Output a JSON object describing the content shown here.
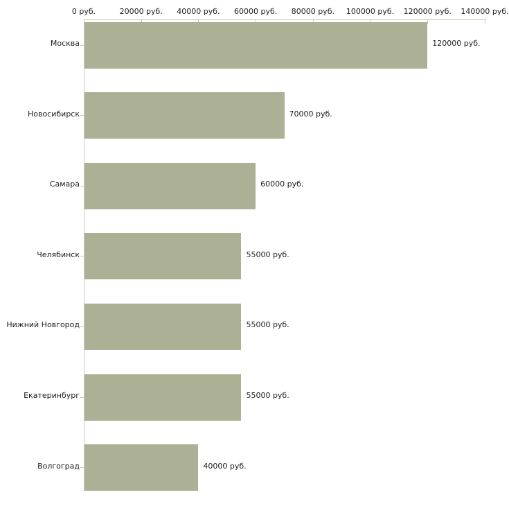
{
  "chart_data": {
    "type": "bar",
    "orientation": "horizontal",
    "title": "",
    "xlabel": "",
    "ylabel": "",
    "grid": false,
    "legend": false,
    "categories": [
      "Москва",
      "Новосибирск",
      "Самара",
      "Челябинск",
      "Нижний Новгород",
      "Екатеринбург",
      "Волгоград"
    ],
    "values": [
      120000,
      70000,
      60000,
      55000,
      55000,
      55000,
      40000
    ],
    "value_labels": [
      "120000 руб.",
      "70000 руб.",
      "60000 руб.",
      "55000 руб.",
      "55000 руб.",
      "55000 руб.",
      "40000 руб."
    ],
    "x_axis": {
      "position": "top",
      "min": 0,
      "max": 140000,
      "tick_step": 20000,
      "tick_values": [
        0,
        20000,
        40000,
        60000,
        80000,
        100000,
        120000,
        140000
      ],
      "tick_labels": [
        "0 руб.",
        "20000 руб.",
        "40000 руб.",
        "60000 руб.",
        "80000 руб.",
        "100000 руб.",
        "120000 руб.",
        "140000 руб."
      ]
    },
    "colors": {
      "bar": "#acb196",
      "value_axis": "#c9c9a9",
      "category_axis": "#c8c8c8",
      "text": "#1c1c1c",
      "background": "#ffffff"
    }
  }
}
